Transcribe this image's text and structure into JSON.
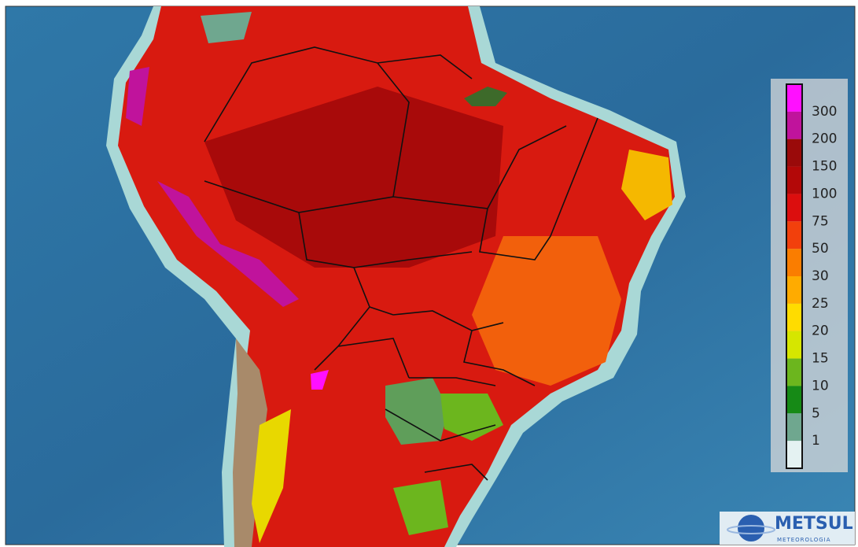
{
  "legend": {
    "labels": [
      300,
      200,
      150,
      100,
      75,
      50,
      30,
      25,
      20,
      15,
      10,
      5,
      1
    ],
    "colors": [
      "#ff10ff",
      "#c0139c",
      "#9a0a0a",
      "#b30808",
      "#dc0e0e",
      "#f2400c",
      "#fa7d00",
      "#ffab00",
      "#ffdc00",
      "#d6e600",
      "#6cb61e",
      "#168a16",
      "#6fa78f",
      "#e4f2f2"
    ]
  },
  "logo": {
    "name": "METSUL",
    "subtitle": "METEOROLOGIA"
  }
}
